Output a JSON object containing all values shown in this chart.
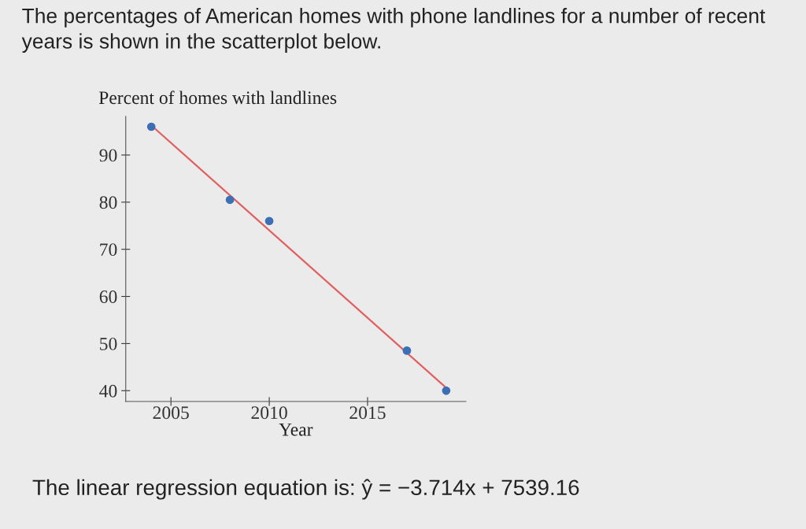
{
  "chart_data": {
    "type": "scatter",
    "title": "The percentages of American homes with phone landlines for a number of recent years is shown in the scatterplot below.",
    "ylabel": "Percent of homes with landlines",
    "xlabel": "Year",
    "series": [
      {
        "marker": "circle",
        "color": "#3d6fb5",
        "x": [
          2004,
          2008,
          2010,
          2017,
          2019
        ],
        "values": [
          96,
          80.5,
          76,
          48.5,
          40
        ]
      },
      {
        "type": "line",
        "color": "#e06060",
        "x": [
          2004,
          2019
        ],
        "values": [
          96.3,
          40.6
        ]
      }
    ],
    "xlim": [
      2002.7,
      2020
    ],
    "xticks": [
      2005,
      2010,
      2015
    ],
    "ylim": [
      37.7,
      98.2
    ],
    "yticks": [
      40,
      50,
      60,
      70,
      80,
      90
    ],
    "grid": false,
    "legend": false,
    "annotations": [
      "The linear regression equation is: ŷ = −3.714x + 7539.16"
    ]
  }
}
